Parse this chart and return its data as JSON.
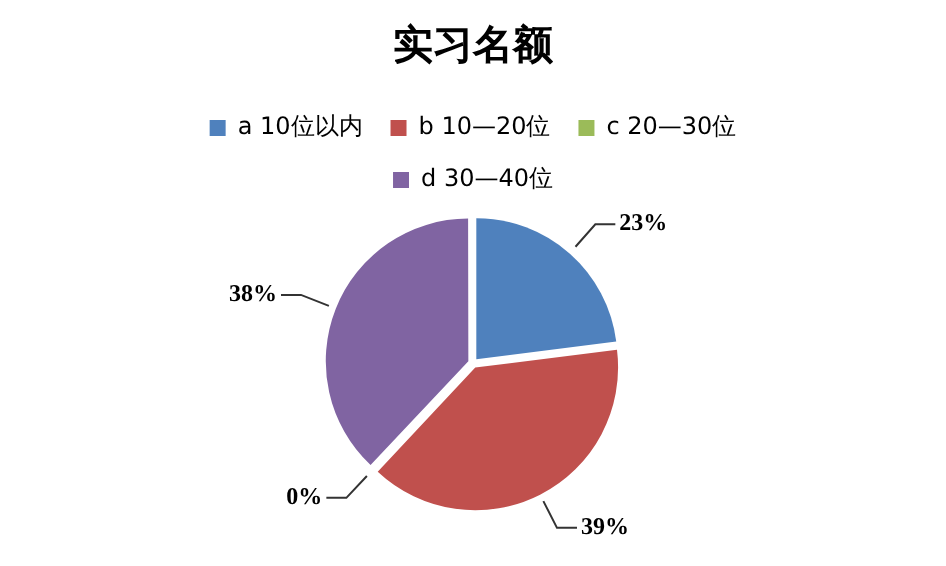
{
  "chart_data": {
    "type": "pie",
    "title": "实习名额",
    "categories": [
      "a 10位以内",
      "b 10—20位",
      "c 20—30位",
      "d 30—40位"
    ],
    "values": [
      23,
      39,
      0,
      38
    ],
    "colors": [
      "#4f81bd",
      "#c0504d",
      "#9bbb59",
      "#8064a2"
    ],
    "value_labels": [
      "23%",
      "39%",
      "0%",
      "38%"
    ],
    "legend": "top"
  }
}
